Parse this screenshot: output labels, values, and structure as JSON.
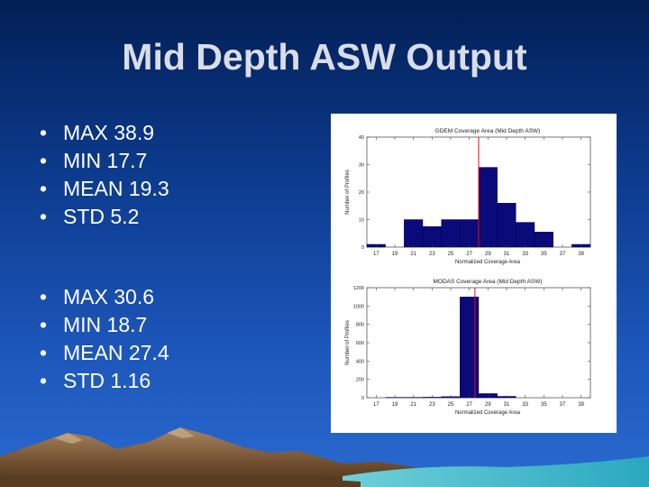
{
  "slide": {
    "title": "Mid Depth ASW Output"
  },
  "stats_groups": [
    {
      "items": [
        "MAX 38.9",
        "MIN 17.7",
        "MEAN 19.3",
        "STD 5.2"
      ]
    },
    {
      "items": [
        "MAX 30.6",
        "MIN 18.7",
        "MEAN 27.4",
        "STD 1.16"
      ]
    }
  ],
  "colors": {
    "bar": "#0a0a7a",
    "marker": "#ff0000",
    "title_text": "#d9dde6"
  },
  "chart_data": [
    {
      "type": "bar",
      "title": "GDEM Coverage Area (Mid Depth ASW)",
      "xlabel": "Normalized Coverage Area",
      "ylabel": "Number of Profiles",
      "x": [
        17,
        19,
        21,
        23,
        25,
        27,
        29,
        31,
        33,
        35,
        37,
        39
      ],
      "values": [
        1,
        0,
        10,
        7.5,
        10,
        10,
        29,
        16,
        9,
        5.5,
        0,
        1
      ],
      "xticks": [
        "17",
        "19",
        "21",
        "23",
        "25",
        "27",
        "29",
        "31",
        "33",
        "35",
        "37",
        "39"
      ],
      "yticks": [
        "0",
        "10",
        "20",
        "30",
        "40"
      ],
      "xlim": [
        16,
        40
      ],
      "ylim": [
        0,
        40
      ],
      "marker_line_x": 28
    },
    {
      "type": "bar",
      "title": "MODAS Coverage Area (Mid Depth ASW)",
      "xlabel": "Normalized Coverage Area",
      "ylabel": "Number of Profiles",
      "x": [
        17,
        19,
        21,
        23,
        25,
        27,
        29,
        31,
        33,
        35,
        37,
        39
      ],
      "values": [
        0,
        4,
        4,
        6,
        12,
        1100,
        45,
        15,
        0,
        0,
        0,
        0
      ],
      "xticks": [
        "17",
        "19",
        "21",
        "23",
        "25",
        "27",
        "29",
        "31",
        "33",
        "35",
        "37",
        "39"
      ],
      "yticks": [
        "0",
        "200",
        "400",
        "600",
        "800",
        "1000",
        "1200"
      ],
      "xlim": [
        16,
        40
      ],
      "ylim": [
        0,
        1200
      ],
      "marker_line_x": 27.6
    }
  ]
}
